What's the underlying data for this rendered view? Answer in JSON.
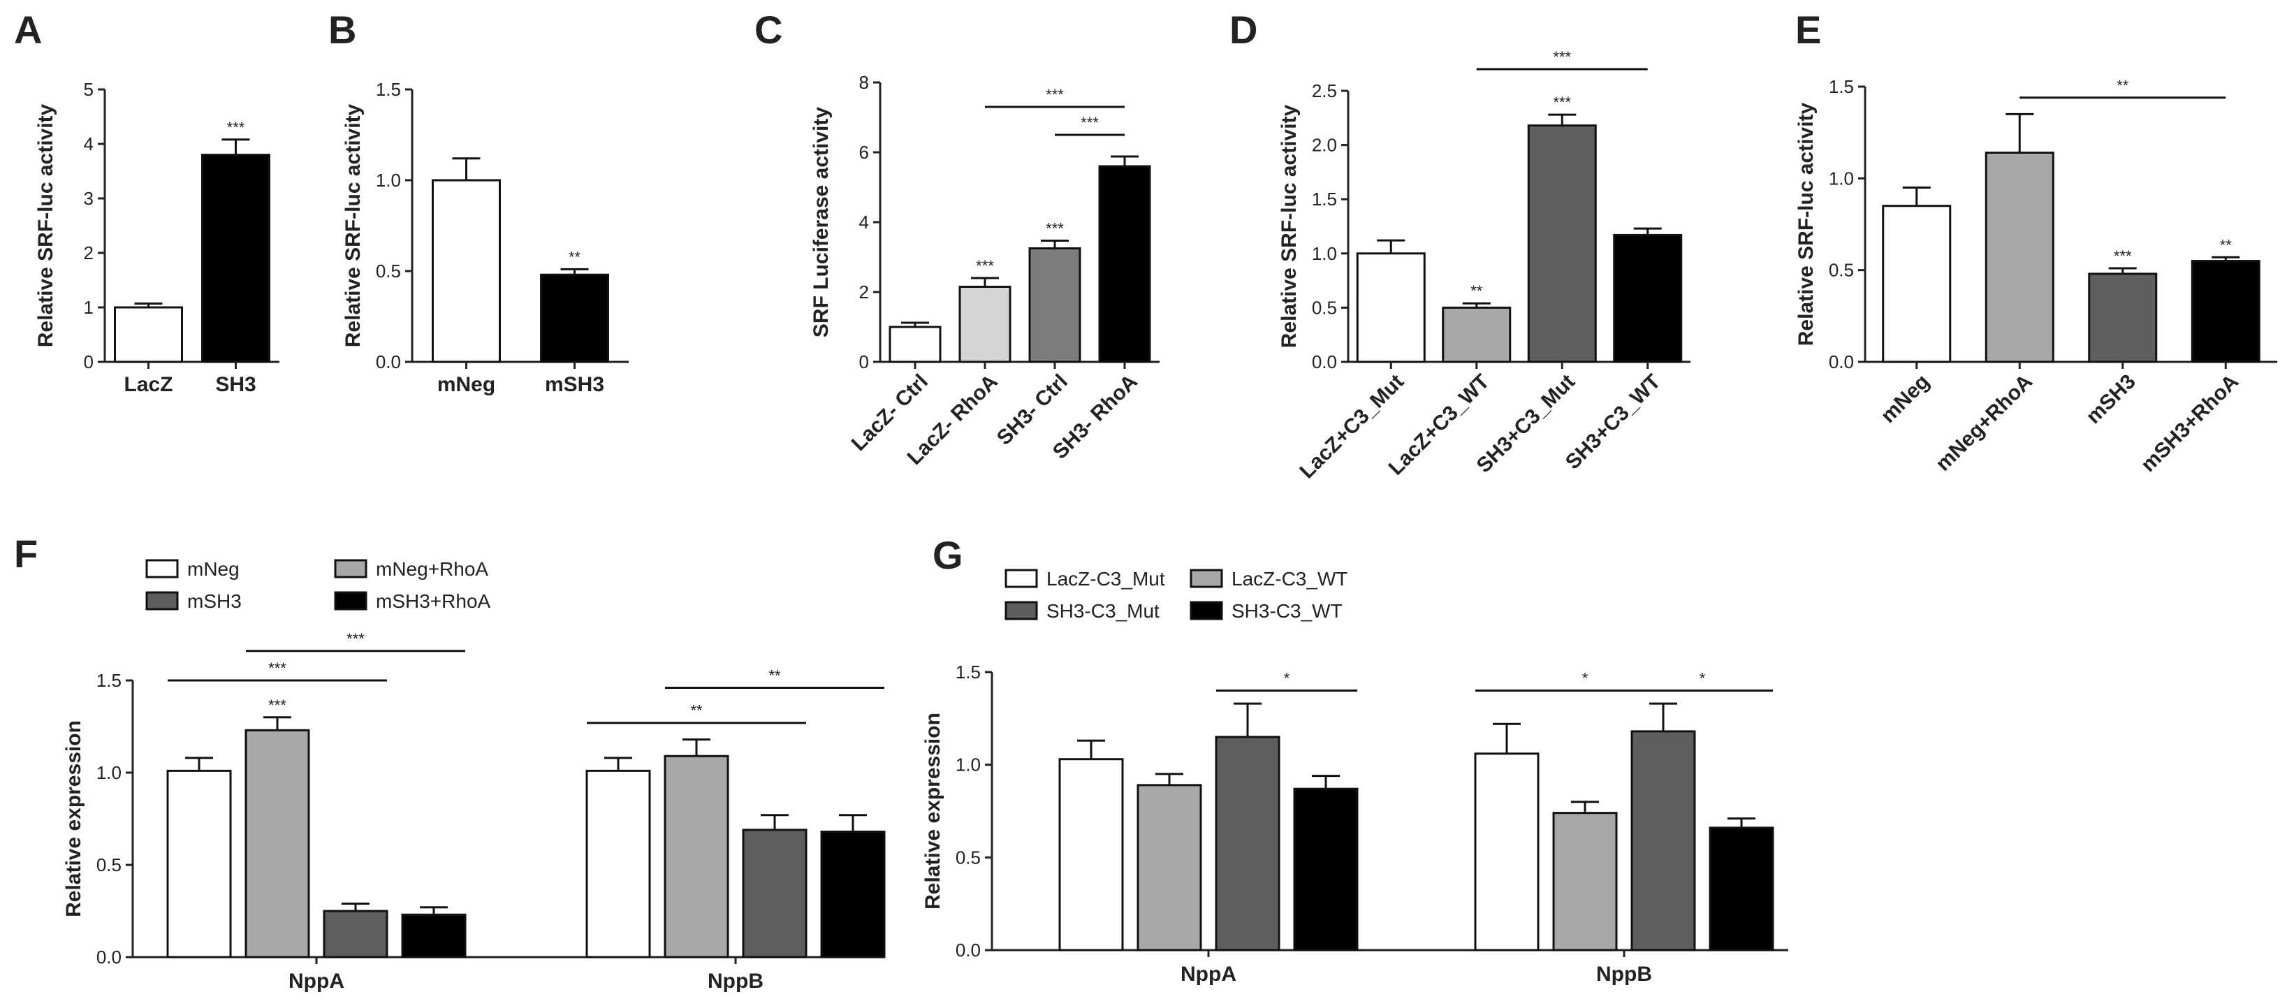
{
  "chart_data": [
    {
      "panel": "A",
      "type": "bar",
      "ylabel": "Relative SRF-luc activity",
      "ylim": [
        0,
        5
      ],
      "yticks": [
        0,
        1,
        2,
        3,
        4,
        5
      ],
      "categories": [
        "LacZ",
        "SH3"
      ],
      "values": [
        1.0,
        3.8
      ],
      "errors": [
        0.07,
        0.28
      ],
      "colors": [
        "#ffffff",
        "#000000"
      ],
      "sig": [
        "",
        "***"
      ],
      "brackets": []
    },
    {
      "panel": "B",
      "type": "bar",
      "ylabel": "Relative SRF-luc activity",
      "ylim": [
        0,
        1.5
      ],
      "yticks": [
        "0.0",
        "0.5",
        "1.0",
        "1.5"
      ],
      "categories": [
        "mNeg",
        "mSH3"
      ],
      "values": [
        1.0,
        0.48
      ],
      "errors": [
        0.12,
        0.03
      ],
      "colors": [
        "#ffffff",
        "#000000"
      ],
      "sig": [
        "",
        "**"
      ],
      "brackets": []
    },
    {
      "panel": "C",
      "type": "bar",
      "ylabel": "SRF Luciferase activity",
      "ylim": [
        0,
        8
      ],
      "yticks": [
        0,
        2,
        4,
        6,
        8
      ],
      "categories": [
        "LacZ- Ctrl",
        "LacZ- RhoA",
        "SH3- Ctrl",
        "SH3- RhoA"
      ],
      "values": [
        1.0,
        2.15,
        3.25,
        5.6
      ],
      "errors": [
        0.12,
        0.25,
        0.22,
        0.28
      ],
      "colors": [
        "#ffffff",
        "#d4d4d4",
        "#7c7c7c",
        "#000000"
      ],
      "sig": [
        "",
        "***",
        "***",
        ""
      ],
      "brackets": [
        {
          "from": 1,
          "to": 3,
          "y": 7.3,
          "label": "***"
        },
        {
          "from": 2,
          "to": 3,
          "y": 6.5,
          "label": "***"
        }
      ]
    },
    {
      "panel": "D",
      "type": "bar",
      "ylabel": "Relative SRF-luc activity",
      "ylim": [
        0,
        2.5
      ],
      "yticks": [
        "0.0",
        "0.5",
        "1.0",
        "1.5",
        "2.0",
        "2.5"
      ],
      "categories": [
        "LacZ+C3_Mut",
        "LacZ+C3_WT",
        "SH3+C3_Mut",
        "SH3+C3_WT"
      ],
      "values": [
        1.0,
        0.5,
        2.18,
        1.17
      ],
      "errors": [
        0.12,
        0.04,
        0.1,
        0.06
      ],
      "colors": [
        "#ffffff",
        "#a8a8a8",
        "#5e5e5e",
        "#000000"
      ],
      "sig": [
        "",
        "**",
        "***",
        ""
      ],
      "brackets": [
        {
          "from": 1,
          "to": 3,
          "y": 2.7,
          "label": "***"
        }
      ]
    },
    {
      "panel": "E",
      "type": "bar",
      "ylabel": "Relative SRF-luc activity",
      "ylim": [
        0,
        1.5
      ],
      "yticks": [
        "0.0",
        "0.5",
        "1.0",
        "1.5"
      ],
      "categories": [
        "mNeg",
        "mNeg+RhoA",
        "mSH3",
        "mSH3+RhoA"
      ],
      "values": [
        0.85,
        1.14,
        0.48,
        0.55
      ],
      "errors": [
        0.1,
        0.21,
        0.03,
        0.02
      ],
      "colors": [
        "#ffffff",
        "#a8a8a8",
        "#5e5e5e",
        "#000000"
      ],
      "sig": [
        "",
        "",
        "***",
        "**"
      ],
      "brackets": [
        {
          "from": 1,
          "to": 3,
          "y": 1.44,
          "label": "**"
        }
      ]
    },
    {
      "panel": "F",
      "type": "grouped-bar",
      "ylabel": "Relative expression",
      "ylim": [
        0,
        1.5
      ],
      "yticks": [
        "0.0",
        "0.5",
        "1.0",
        "1.5"
      ],
      "groups": [
        "NppA",
        "NppB"
      ],
      "series": [
        {
          "name": "mNeg",
          "color": "#ffffff",
          "values": [
            1.01,
            1.01
          ],
          "errors": [
            0.07,
            0.07
          ]
        },
        {
          "name": "mNeg+RhoA",
          "color": "#a8a8a8",
          "values": [
            1.23,
            1.09
          ],
          "errors": [
            0.07,
            0.09
          ]
        },
        {
          "name": "mSH3",
          "color": "#5e5e5e",
          "values": [
            0.25,
            0.69
          ],
          "errors": [
            0.04,
            0.08
          ]
        },
        {
          "name": "mSH3+RhoA",
          "color": "#000000",
          "values": [
            0.23,
            0.68
          ],
          "errors": [
            0.04,
            0.09
          ]
        }
      ],
      "legend": [
        {
          "name": "mNeg",
          "color": "#ffffff",
          "col": 0,
          "row": 0
        },
        {
          "name": "mSH3",
          "color": "#5e5e5e",
          "col": 0,
          "row": 1
        },
        {
          "name": "mNeg+RhoA",
          "color": "#a8a8a8",
          "col": 1,
          "row": 0
        },
        {
          "name": "mSH3+RhoA",
          "color": "#000000",
          "col": 1,
          "row": 1
        }
      ],
      "sig": [
        {
          "group": 0,
          "series": 1,
          "label": "***"
        }
      ],
      "brackets": [
        {
          "fromGroup": 0,
          "fromSeries": 0,
          "toGroup": 0,
          "toSeries": 2,
          "y": 1.5,
          "label": "***"
        },
        {
          "fromGroup": 0,
          "fromSeries": 1,
          "toGroup": 0,
          "toSeries": 3,
          "y": 1.66,
          "label": "***"
        },
        {
          "fromGroup": 1,
          "fromSeries": 0,
          "toGroup": 1,
          "toSeries": 2,
          "y": 1.27,
          "label": "**"
        },
        {
          "fromGroup": 1,
          "fromSeries": 1,
          "toGroup": 1,
          "toSeries": 3,
          "y": 1.46,
          "label": "**"
        }
      ]
    },
    {
      "panel": "G",
      "type": "grouped-bar",
      "ylabel": "Relative expression",
      "ylim": [
        0,
        1.5
      ],
      "yticks": [
        "0.0",
        "0.5",
        "1.0",
        "1.5"
      ],
      "groups": [
        "NppA",
        "NppB"
      ],
      "series": [
        {
          "name": "LacZ-C3_Mut",
          "color": "#ffffff",
          "values": [
            1.03,
            1.06
          ],
          "errors": [
            0.1,
            0.16
          ]
        },
        {
          "name": "LacZ-C3_WT",
          "color": "#a8a8a8",
          "values": [
            0.89,
            0.74
          ],
          "errors": [
            0.06,
            0.06
          ]
        },
        {
          "name": "SH3-C3_Mut",
          "color": "#5e5e5e",
          "values": [
            1.15,
            1.18
          ],
          "errors": [
            0.18,
            0.15
          ]
        },
        {
          "name": "SH3-C3_WT",
          "color": "#000000",
          "values": [
            0.87,
            0.66
          ],
          "errors": [
            0.07,
            0.05
          ]
        }
      ],
      "legend": [
        {
          "name": "LacZ-C3_Mut",
          "color": "#ffffff",
          "col": 0,
          "row": 0
        },
        {
          "name": "SH3-C3_Mut",
          "color": "#5e5e5e",
          "col": 0,
          "row": 1
        },
        {
          "name": "LacZ-C3_WT",
          "color": "#a8a8a8",
          "col": 1,
          "row": 0
        },
        {
          "name": "SH3-C3_WT",
          "color": "#000000",
          "col": 1,
          "row": 1
        }
      ],
      "sig": [],
      "brackets": [
        {
          "fromGroup": 0,
          "fromSeries": 2,
          "toGroup": 0,
          "toSeries": 3,
          "y": 1.4,
          "label": "*"
        },
        {
          "fromGroup": 1,
          "fromSeries": 0,
          "toGroup": 1,
          "toSeries": 2,
          "y": 1.4,
          "label": "*"
        },
        {
          "fromGroup": 1,
          "fromSeries": 2,
          "toGroup": 1,
          "toSeries": 3,
          "y": 1.4,
          "label": "*"
        }
      ]
    }
  ]
}
